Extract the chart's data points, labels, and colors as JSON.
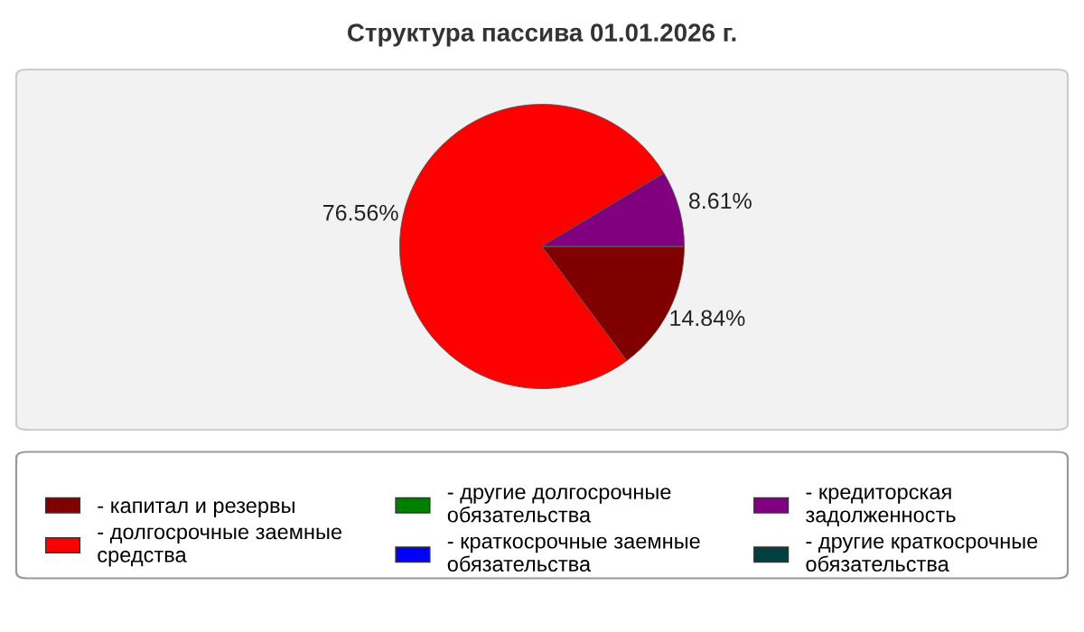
{
  "chart_data": {
    "type": "pie",
    "title": "Структура пассива 01.01.2026 г.",
    "categories": [
      "- капитал и резервы",
      "- долгосрочные заемные средства",
      "- другие долгосрочные обязательства",
      "- краткосрочные заемные обязательства",
      "- кредиторская задолженность",
      "- другие краткосрочные обязательства"
    ],
    "values": [
      14.84,
      76.56,
      0,
      0,
      8.61,
      0
    ],
    "value_labels": [
      "14.84%",
      "76.56%",
      null,
      null,
      "8.61%",
      null
    ],
    "colors": [
      "#800000",
      "#ff0000",
      "#008000",
      "#0000ff",
      "#800080",
      "#004040"
    ],
    "legend": "bottom"
  }
}
